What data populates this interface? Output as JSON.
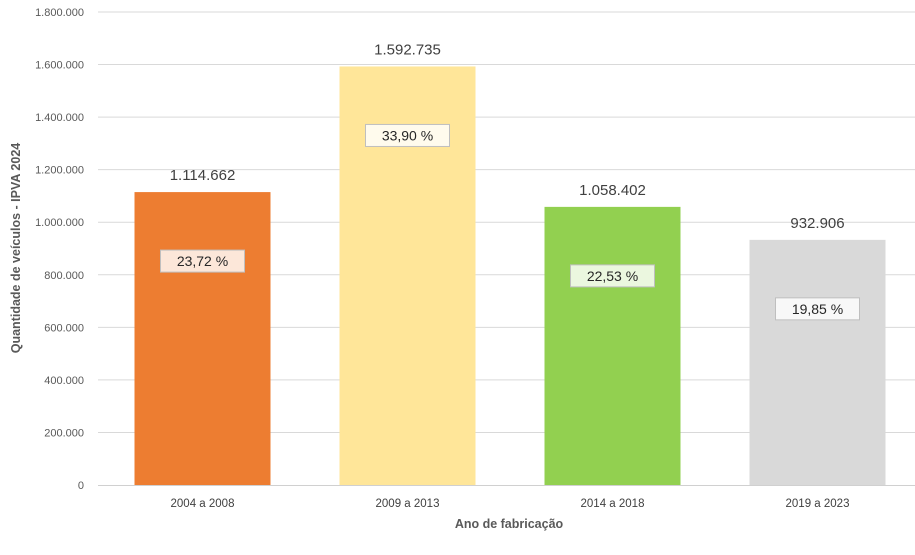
{
  "chart_data": {
    "type": "bar",
    "categories": [
      "2004 a 2008",
      "2009 a 2013",
      "2014 a 2018",
      "2019 a 2023"
    ],
    "values": [
      1114662,
      1592735,
      1058402,
      932906
    ],
    "value_labels": [
      "1.114.662",
      "1.592.735",
      "1.058.402",
      "932.906"
    ],
    "percent_labels": [
      "23,72 %",
      "33,90 %",
      "22,53 %",
      "19,85 %"
    ],
    "bar_colors": [
      "#ED7D31",
      "#FFE699",
      "#92D050",
      "#D9D9D9"
    ],
    "xlabel": "Ano de fabricação",
    "ylabel": "Quantidade de veículos - IPVA 2024",
    "ylim": [
      0,
      1800000
    ],
    "y_ticks": [
      0,
      200000,
      400000,
      600000,
      800000,
      1000000,
      1200000,
      1400000,
      1600000,
      1800000
    ],
    "y_tick_labels": [
      "0",
      "200.000",
      "400.000",
      "600.000",
      "800.000",
      "1.000.000",
      "1.200.000",
      "1.400.000",
      "1.600.000",
      "1.800.000"
    ],
    "grid": "horizontal",
    "legend": "none"
  }
}
